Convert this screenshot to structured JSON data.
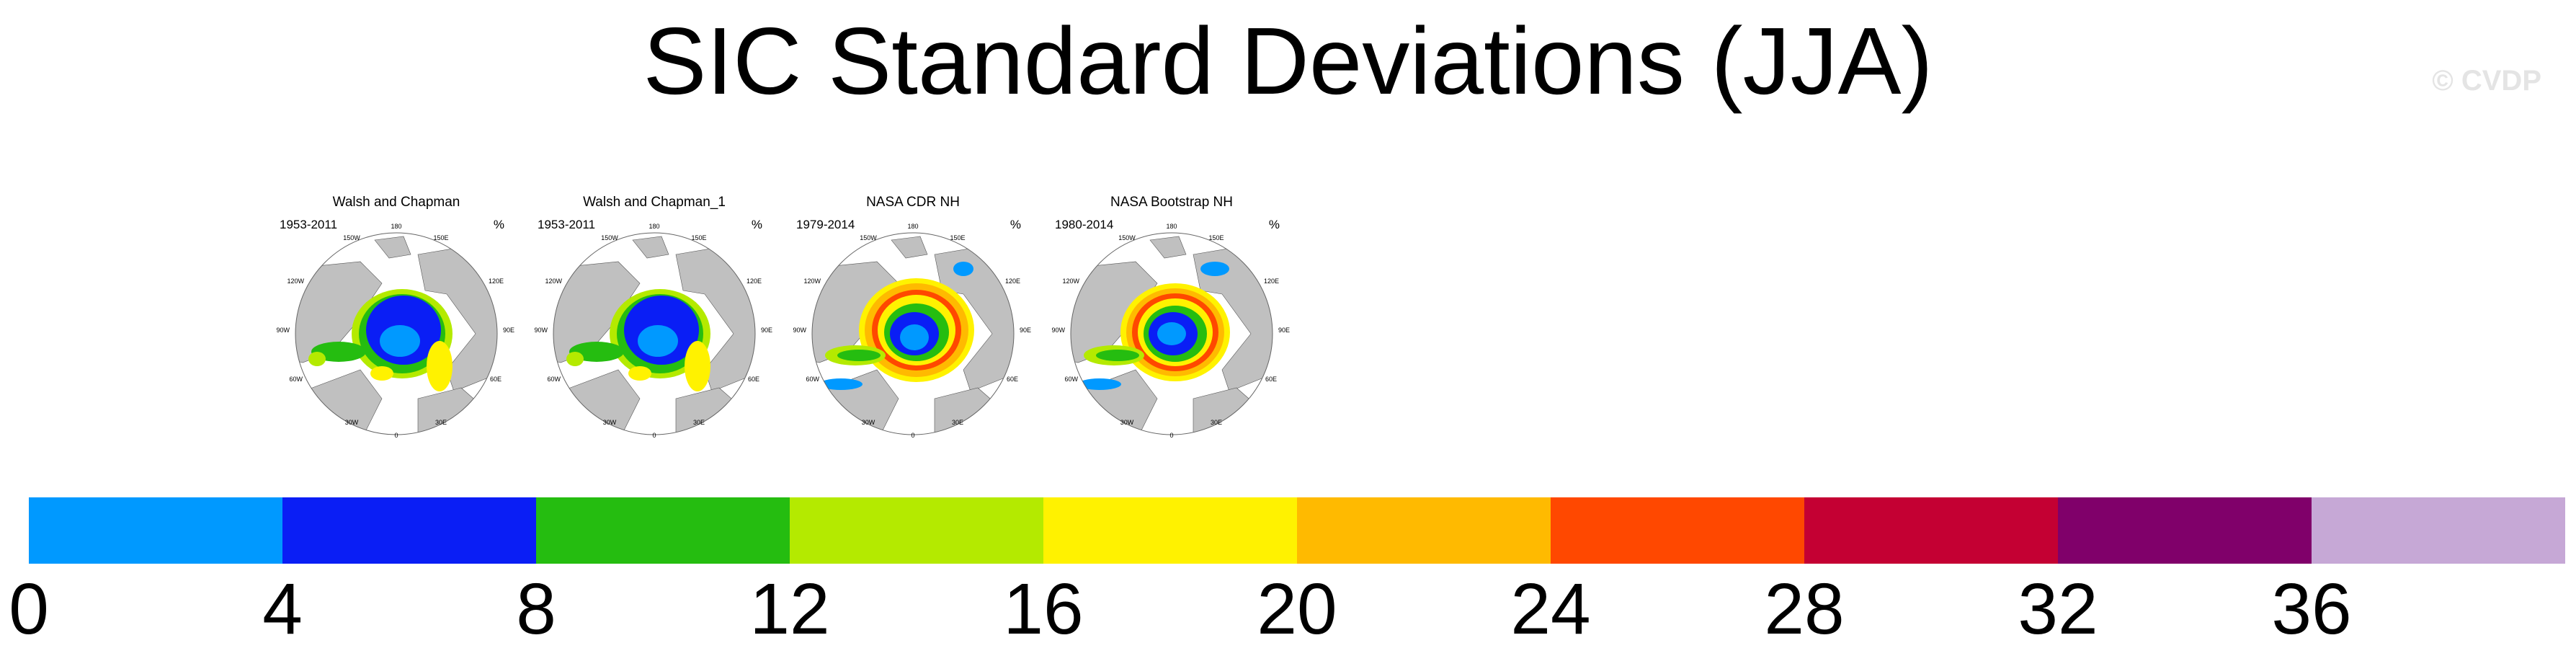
{
  "title": "SIC Standard Deviations (JJA)",
  "watermark": "© CVDP",
  "panels": [
    {
      "title": "Walsh and Chapman",
      "period": "1953-2011",
      "unit": "%",
      "variant": "wc"
    },
    {
      "title": "Walsh and Chapman_1",
      "period": "1953-2011",
      "unit": "%",
      "variant": "wc"
    },
    {
      "title": "NASA CDR NH",
      "period": "1979-2014",
      "unit": "%",
      "variant": "cdr"
    },
    {
      "title": "NASA Bootstrap NH",
      "period": "1980-2014",
      "unit": "%",
      "variant": "boot"
    }
  ],
  "longitude_labels": [
    "180",
    "150W",
    "150E",
    "120W",
    "120E",
    "90W",
    "90E",
    "60W",
    "60E",
    "30W",
    "30E",
    "0"
  ],
  "colorbar": {
    "colors": [
      "#0099ff",
      "#0a1ef5",
      "#25bd10",
      "#b4ea00",
      "#fff200",
      "#ffba00",
      "#ff4800",
      "#c40033",
      "#80006a",
      "#c6a8d6"
    ],
    "labels": [
      "0",
      "4",
      "8",
      "12",
      "16",
      "20",
      "24",
      "28",
      "32",
      "36"
    ]
  },
  "colors": {
    "land": "#c0c0c0",
    "ocean": "#ffffff",
    "coast": "#555555"
  }
}
